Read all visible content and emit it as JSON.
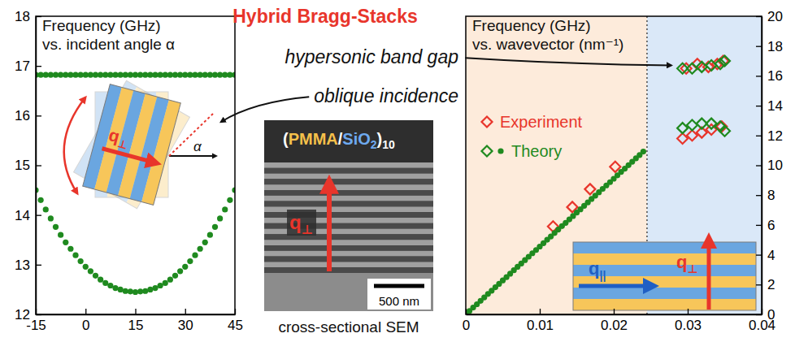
{
  "title": "Hybrid Bragg-Stacks",
  "annotations": [
    "hypersonic band gap",
    "oblique incidence"
  ],
  "image": {
    "label": [
      "(",
      "PMMA",
      "/",
      "SiO",
      "2",
      ")",
      "10"
    ],
    "caption": "cross-sectional SEM",
    "scale_bar": "500 nm",
    "arrow_label": {
      "text": "q",
      "sub": "⊥"
    }
  },
  "chart_data": [
    {
      "type": "scatter",
      "title": "Frequency (GHz)",
      "subtitle": "vs. incident angle α",
      "x": [
        -15,
        -13.5,
        -12,
        -10.5,
        -9,
        -7.5,
        -6,
        -4.5,
        -3,
        -1.5,
        0,
        1.5,
        3,
        4.5,
        6,
        7.5,
        9,
        10.5,
        12,
        13.5,
        15,
        16.5,
        18,
        19.5,
        21,
        22.5,
        24,
        25.5,
        27,
        28.5,
        30,
        31.5,
        33,
        34.5,
        36,
        37.5,
        39,
        40.5,
        42,
        43.5,
        45
      ],
      "series": [
        {
          "color": "#1f8a1f",
          "marker": "dot",
          "values": [
            16.82,
            16.82,
            16.82,
            16.82,
            16.82,
            16.82,
            16.82,
            16.82,
            16.82,
            16.82,
            16.82,
            16.82,
            16.82,
            16.82,
            16.82,
            16.82,
            16.82,
            16.82,
            16.82,
            16.82,
            16.82,
            16.82,
            16.82,
            16.82,
            16.82,
            16.82,
            16.82,
            16.82,
            16.82,
            16.82,
            16.82,
            16.82,
            16.82,
            16.82,
            16.82,
            16.82,
            16.82,
            16.82,
            16.82,
            16.82,
            16.82
          ]
        },
        {
          "color": "#1f8a1f",
          "marker": "dot",
          "values": [
            14.5,
            14.3,
            14.11,
            13.93,
            13.76,
            13.6,
            13.45,
            13.32,
            13.19,
            13.07,
            12.96,
            12.87,
            12.78,
            12.7,
            12.63,
            12.58,
            12.53,
            12.5,
            12.47,
            12.46,
            12.45,
            12.46,
            12.47,
            12.5,
            12.53,
            12.58,
            12.63,
            12.7,
            12.78,
            12.87,
            12.96,
            13.07,
            13.19,
            13.32,
            13.45,
            13.6,
            13.76,
            13.93,
            14.11,
            14.3,
            14.5
          ]
        }
      ],
      "xlim": [
        -15,
        45
      ],
      "ylim": [
        12,
        18
      ],
      "xticks": [
        -15,
        0,
        15,
        30,
        45
      ],
      "yticks": [
        12,
        13,
        14,
        15,
        16,
        17,
        18
      ],
      "annotations": [
        {
          "text": "q",
          "sub": "⊥"
        },
        {
          "text": "α"
        }
      ]
    },
    {
      "type": "scatter",
      "title": "Frequency (GHz)",
      "subtitle": "vs. wavevector (nm⁻¹)",
      "series": [
        {
          "name": "Experiment",
          "color": "#e8352b",
          "marker": "diamond",
          "x": [
            0.0118,
            0.0144,
            0.0168,
            0.0202,
            0.0293,
            0.0306,
            0.0319,
            0.0332,
            0.0346,
            0.0298,
            0.0313,
            0.0328,
            0.034,
            0.0348
          ],
          "values": [
            5.9,
            7.2,
            8.4,
            9.9,
            11.8,
            12,
            12.2,
            12.4,
            12.6,
            16.5,
            16.8,
            16.6,
            16.8,
            17
          ]
        },
        {
          "name": "Theory",
          "color": "#1f8a1f",
          "marker": "diamond",
          "x": [
            0.0293,
            0.0306,
            0.0319,
            0.0332,
            0.0344,
            0.035,
            0.0293,
            0.0306,
            0.0319,
            0.0332,
            0.0344,
            0.035
          ],
          "values": [
            12.5,
            12.7,
            12.8,
            12.8,
            12.6,
            12.3,
            16.5,
            16.5,
            16.6,
            16.7,
            16.8,
            17
          ]
        },
        {
          "color": "#1f8a1f",
          "marker": "dot",
          "x": [
            0,
            0.0005,
            0.001,
            0.0015,
            0.002,
            0.0025,
            0.003,
            0.0035,
            0.004,
            0.0045,
            0.005,
            0.0055,
            0.006,
            0.0065,
            0.007,
            0.0075,
            0.008,
            0.0085,
            0.009,
            0.0095,
            0.01,
            0.0105,
            0.011,
            0.0115,
            0.012,
            0.0125,
            0.013,
            0.0135,
            0.014,
            0.0145,
            0.015,
            0.0155,
            0.016,
            0.0165,
            0.017,
            0.0175,
            0.018,
            0.0185,
            0.019,
            0.0195,
            0.02,
            0.0205,
            0.021,
            0.0215,
            0.022,
            0.0225,
            0.023,
            0.0235,
            0.024
          ],
          "values": [
            0,
            0.23,
            0.46,
            0.68,
            0.91,
            1.14,
            1.37,
            1.59,
            1.82,
            2.05,
            2.28,
            2.5,
            2.73,
            2.96,
            3.19,
            3.41,
            3.64,
            3.87,
            4.1,
            4.32,
            4.55,
            4.78,
            5.01,
            5.23,
            5.46,
            5.69,
            5.92,
            6.14,
            6.37,
            6.6,
            6.83,
            7.05,
            7.28,
            7.51,
            7.74,
            7.96,
            8.19,
            8.42,
            8.65,
            8.87,
            9.1,
            9.33,
            9.56,
            9.78,
            10.01,
            10.24,
            10.47,
            10.69,
            10.92
          ]
        }
      ],
      "xlim": [
        0,
        0.04
      ],
      "ylim": [
        0,
        20
      ],
      "xticks": [
        0,
        0.01,
        0.02,
        0.03,
        0.04
      ],
      "yticks": [
        0,
        2,
        4,
        6,
        8,
        10,
        12,
        14,
        16,
        18,
        20
      ],
      "legend": "upper left",
      "regions": [
        {
          "xlim": [
            0,
            0.0245
          ],
          "color": "#fdebdb"
        },
        {
          "xlim": [
            0.0245,
            0.04
          ],
          "color": "#dae8f8"
        }
      ],
      "annotations": [
        {
          "text": "q",
          "sub": "||"
        },
        {
          "text": "q",
          "sub": "⊥"
        }
      ]
    }
  ]
}
